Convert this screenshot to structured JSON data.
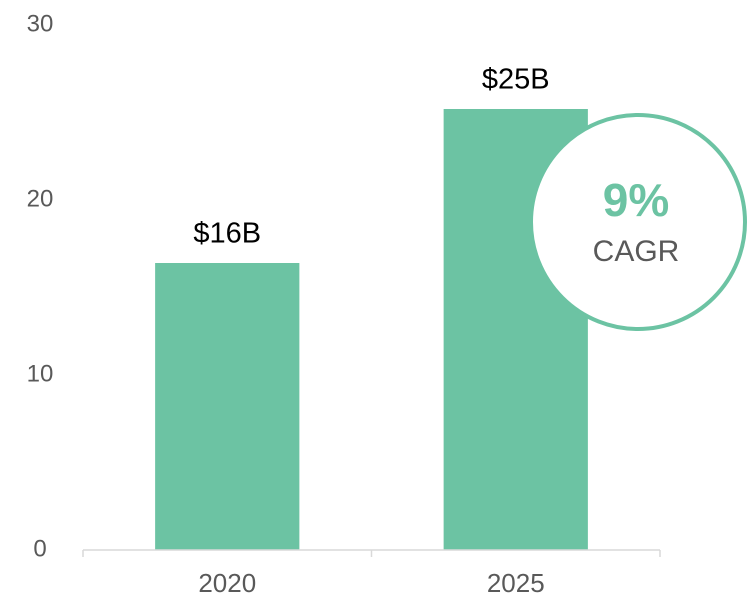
{
  "chart_data": {
    "type": "bar",
    "categories": [
      "2020",
      "2025"
    ],
    "values": [
      16.4,
      25.2
    ],
    "value_labels": [
      "$16B",
      "$25B"
    ],
    "color": "#6cc3a3",
    "ylim": [
      0,
      30
    ],
    "yticks": [
      0,
      10,
      20,
      30
    ],
    "grid": false,
    "annotation": {
      "text": "9%",
      "label": "CAGR"
    }
  }
}
